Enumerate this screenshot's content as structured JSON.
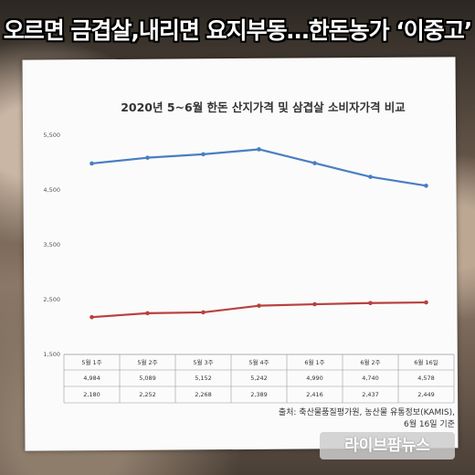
{
  "headline": "오르면 금겹살,내리면 요지부동…한돈농가 ‘이중고’",
  "source": {
    "line1": "출처: 축산물품질평가원, 농산물 유통정보(KAMIS),",
    "line2": "6월 16일 기준"
  },
  "watermark": "라이브팜뉴스",
  "colors": {
    "series1": "#4a7ec1",
    "series2": "#b8413f"
  },
  "chart_data": {
    "type": "line",
    "title": "2020년 5~6월 한돈 산지가격 및 삼겹살 소비자가격 비교",
    "xlabel": "",
    "ylabel": "",
    "categories": [
      "5월 1주",
      "5월 2주",
      "5월 3주",
      "5월 4주",
      "6월 1주",
      "6월 2주",
      "6월 16일"
    ],
    "ylim": [
      1500,
      5500
    ],
    "yticks": [
      1500,
      2500,
      3500,
      4500,
      5500
    ],
    "ytick_labels": [
      "1,500",
      "2,500",
      "3,500",
      "4,500",
      "5,500"
    ],
    "grid": false,
    "legend": "none",
    "series": [
      {
        "values": [
          4984,
          5089,
          5152,
          5242,
          4990,
          4740,
          4578
        ],
        "labels": [
          "4,984",
          "5,089",
          "5,152",
          "5,242",
          "4,990",
          "4,740",
          "4,578"
        ]
      },
      {
        "values": [
          2180,
          2252,
          2268,
          2389,
          2416,
          2437,
          2449
        ],
        "labels": [
          "2,180",
          "2,252",
          "2,268",
          "2,389",
          "2,416",
          "2,437",
          "2,449"
        ]
      }
    ]
  }
}
